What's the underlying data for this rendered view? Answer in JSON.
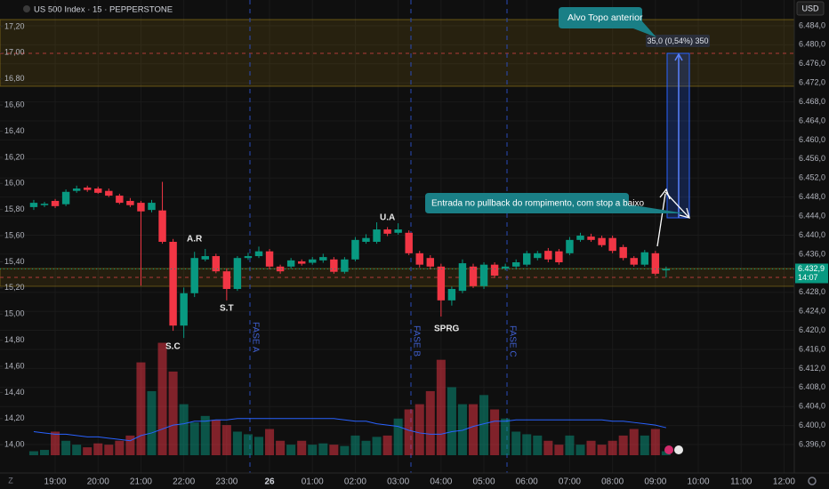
{
  "chart_data": {
    "type": "candlestick",
    "title": "US 500 Index · 15 · PEPPERSTONE",
    "currency": "USD",
    "x": [
      0,
      1,
      2,
      3,
      4,
      5,
      6,
      7,
      8,
      9,
      10,
      11,
      12,
      13,
      14,
      15,
      16,
      17,
      18,
      19,
      20,
      21,
      22,
      23,
      24,
      25,
      26,
      27,
      28,
      29,
      30,
      31,
      32,
      33,
      34,
      35,
      36,
      37,
      38,
      39,
      40,
      41,
      42,
      43,
      44,
      45,
      46,
      47,
      48,
      49,
      50,
      51,
      52,
      53,
      54,
      55,
      56,
      57,
      58,
      59
    ],
    "open": [
      6445.9,
      6446.3,
      6447.2,
      6446.5,
      6449.3,
      6450.0,
      6449.8,
      6449.3,
      6448.3,
      6447.2,
      6446.8,
      6445.3,
      6445.2,
      6438.6,
      6421.0,
      6427.8,
      6434.9,
      6435.6,
      6432.4,
      6428.7,
      6435.2,
      6435.6,
      6436.6,
      6433.4,
      6433.4,
      6434.5,
      6434.2,
      6434.7,
      6434.9,
      6432.3,
      6434.9,
      6438.6,
      6438.6,
      6441.2,
      6440.5,
      6440.5,
      6436.2,
      6435.2,
      6433.4,
      6426.3,
      6428.3,
      6433.4,
      6429.3,
      6433.8,
      6433.0,
      6433.4,
      6433.8,
      6435.2,
      6436.7,
      6436.6,
      6436.2,
      6439.0,
      6439.7,
      6439.4,
      6439.4,
      6437.5,
      6435.2,
      6433.8,
      6436.2,
      6432.6
    ],
    "high": [
      6447.4,
      6447.0,
      6447.6,
      6449.6,
      6450.4,
      6450.4,
      6450.2,
      6449.8,
      6448.7,
      6447.8,
      6447.2,
      6447.4,
      6451.2,
      6439.2,
      6429.0,
      6436.5,
      6437.1,
      6436.1,
      6433.0,
      6435.6,
      6436.3,
      6437.6,
      6437.1,
      6433.8,
      6435.2,
      6434.9,
      6435.4,
      6436.1,
      6435.4,
      6435.4,
      6439.6,
      6440.2,
      6442.7,
      6441.7,
      6442.5,
      6441.0,
      6436.7,
      6435.8,
      6434.0,
      6429.2,
      6434.9,
      6434.0,
      6434.3,
      6434.3,
      6434.0,
      6434.9,
      6436.7,
      6436.7,
      6437.3,
      6437.1,
      6439.6,
      6440.5,
      6440.3,
      6439.9,
      6439.9,
      6438.0,
      6435.6,
      6436.9,
      6436.7,
      6433.4
    ],
    "low": [
      6445.3,
      6445.9,
      6445.7,
      6446.1,
      6448.9,
      6449.1,
      6448.7,
      6448.0,
      6446.5,
      6445.9,
      6429.4,
      6444.8,
      6438.2,
      6419.9,
      6418.4,
      6427.0,
      6434.5,
      6432.0,
      6426.3,
      6428.3,
      6434.8,
      6435.2,
      6432.8,
      6431.9,
      6433.0,
      6433.6,
      6433.8,
      6434.2,
      6431.9,
      6431.9,
      6434.5,
      6438.2,
      6438.2,
      6439.8,
      6440.1,
      6435.8,
      6433.2,
      6432.8,
      6422.9,
      6425.2,
      6427.8,
      6428.9,
      6428.7,
      6431.0,
      6432.6,
      6432.8,
      6433.4,
      6434.7,
      6434.3,
      6433.8,
      6435.8,
      6438.6,
      6438.6,
      6437.5,
      6436.2,
      6434.7,
      6433.4,
      6433.4,
      6431.5,
      6431.1
    ],
    "close": [
      6446.8,
      6446.6,
      6446.1,
      6449.1,
      6449.8,
      6449.5,
      6448.9,
      6448.3,
      6446.8,
      6446.3,
      6445.0,
      6446.8,
      6438.6,
      6421.0,
      6427.8,
      6435.2,
      6435.6,
      6432.4,
      6428.7,
      6435.2,
      6435.6,
      6436.6,
      6433.4,
      6432.4,
      6434.7,
      6434.0,
      6434.9,
      6435.4,
      6432.3,
      6434.9,
      6439.0,
      6439.4,
      6441.2,
      6440.3,
      6441.2,
      6436.2,
      6433.8,
      6433.4,
      6426.3,
      6428.7,
      6434.1,
      6429.3,
      6433.8,
      6431.5,
      6433.4,
      6434.3,
      6436.2,
      6436.2,
      6434.9,
      6434.3,
      6439.0,
      6439.9,
      6439.0,
      6437.9,
      6436.7,
      6435.2,
      6433.8,
      6436.4,
      6431.9,
      6432.9
    ],
    "volume": [
      13.95,
      13.96,
      14.1,
      14.03,
      14.0,
      13.98,
      14.01,
      14.0,
      14.03,
      14.07,
      14.63,
      14.41,
      14.78,
      14.56,
      14.31,
      14.17,
      14.22,
      14.19,
      14.15,
      14.1,
      14.08,
      14.06,
      14.12,
      14.03,
      14.0,
      14.03,
      14.0,
      14.01,
      14.0,
      13.99,
      14.07,
      14.03,
      14.06,
      14.07,
      14.2,
      14.27,
      14.31,
      14.41,
      14.65,
      14.44,
      14.31,
      14.31,
      14.38,
      14.27,
      14.2,
      14.1,
      14.08,
      14.07,
      14.03,
      14.0,
      14.07,
      14.0,
      14.03,
      14.0,
      14.03,
      14.07,
      14.12,
      14.07,
      14.12,
      13.95
    ],
    "volume_ma": [
      14.1,
      14.09,
      14.08,
      14.08,
      14.07,
      14.06,
      14.06,
      14.05,
      14.04,
      14.03,
      14.07,
      14.09,
      14.12,
      14.15,
      14.16,
      14.18,
      14.18,
      14.19,
      14.19,
      14.2,
      14.2,
      14.2,
      14.2,
      14.2,
      14.2,
      14.2,
      14.2,
      14.2,
      14.2,
      14.19,
      14.18,
      14.18,
      14.16,
      14.15,
      14.14,
      14.11,
      14.09,
      14.08,
      14.08,
      14.1,
      14.11,
      14.14,
      14.16,
      14.18,
      14.18,
      14.19,
      14.19,
      14.19,
      14.19,
      14.19,
      14.19,
      14.19,
      14.19,
      14.19,
      14.18,
      14.18,
      14.17,
      14.16,
      14.15,
      14.13
    ],
    "volume_axis": "y2",
    "up_color": "#089981",
    "down_color": "#f23645",
    "ma_color": "#2962ff",
    "grid": true,
    "xlim": [
      -3.15,
      70.96
    ],
    "xticks": [
      {
        "value": 2,
        "label": "19:00"
      },
      {
        "value": 6,
        "label": "20:00"
      },
      {
        "value": 10,
        "label": "21:00"
      },
      {
        "value": 14,
        "label": "22:00"
      },
      {
        "value": 18,
        "label": "23:00"
      },
      {
        "value": 22,
        "label": "26"
      },
      {
        "value": 26,
        "label": "01:00"
      },
      {
        "value": 30,
        "label": "02:00"
      },
      {
        "value": 34,
        "label": "03:00"
      },
      {
        "value": 38,
        "label": "04:00"
      },
      {
        "value": 42,
        "label": "05:00"
      },
      {
        "value": 46,
        "label": "06:00"
      },
      {
        "value": 50,
        "label": "07:00"
      },
      {
        "value": 54,
        "label": "08:00"
      },
      {
        "value": 58,
        "label": "09:00"
      },
      {
        "value": 62,
        "label": "10:00"
      },
      {
        "value": 66,
        "label": "11:00"
      },
      {
        "value": 70,
        "label": "12:00"
      }
    ],
    "ylim": [
      6390.4,
      6485.3
    ],
    "yticks": [
      {
        "value": 6484,
        "label": "6.484,0"
      },
      {
        "value": 6480,
        "label": "6.480,0"
      },
      {
        "value": 6476,
        "label": "6.476,0"
      },
      {
        "value": 6472,
        "label": "6.472,0"
      },
      {
        "value": 6468,
        "label": "6.468,0"
      },
      {
        "value": 6464,
        "label": "6.464,0"
      },
      {
        "value": 6460,
        "label": "6.460,0"
      },
      {
        "value": 6456,
        "label": "6.456,0"
      },
      {
        "value": 6452,
        "label": "6.452,0"
      },
      {
        "value": 6448,
        "label": "6.448,0"
      },
      {
        "value": 6444,
        "label": "6.444,0"
      },
      {
        "value": 6440,
        "label": "6.440,0"
      },
      {
        "value": 6436,
        "label": "6.436,0"
      },
      {
        "value": 6428,
        "label": "6.428,0"
      },
      {
        "value": 6424,
        "label": "6.424,0"
      },
      {
        "value": 6420,
        "label": "6.420,0"
      },
      {
        "value": 6416,
        "label": "6.416,0"
      },
      {
        "value": 6412,
        "label": "6.412,0"
      },
      {
        "value": 6408,
        "label": "6.408,0"
      },
      {
        "value": 6404,
        "label": "6.404,0"
      },
      {
        "value": 6400,
        "label": "6.400,0"
      },
      {
        "value": 6396,
        "label": "6.396,0"
      }
    ],
    "y2lim": [
      13.797,
      17.254
    ],
    "y2ticks": [
      {
        "value": 17.2,
        "label": "17,20"
      },
      {
        "value": 17.0,
        "label": "17,00"
      },
      {
        "value": 16.8,
        "label": "16,80"
      },
      {
        "value": 16.6,
        "label": "16,60"
      },
      {
        "value": 16.4,
        "label": "16,40"
      },
      {
        "value": 16.2,
        "label": "16,20"
      },
      {
        "value": 16.0,
        "label": "16,00"
      },
      {
        "value": 15.8,
        "label": "15,80"
      },
      {
        "value": 15.6,
        "label": "15,60"
      },
      {
        "value": 15.4,
        "label": "15,40"
      },
      {
        "value": 15.2,
        "label": "15,20"
      },
      {
        "value": 15.0,
        "label": "15,00"
      },
      {
        "value": 14.8,
        "label": "14,80"
      },
      {
        "value": 14.6,
        "label": "14,60"
      },
      {
        "value": 14.4,
        "label": "14,40"
      },
      {
        "value": 14.2,
        "label": "14,20"
      },
      {
        "value": 14.0,
        "label": "14,00"
      }
    ],
    "last_price": {
      "value": 6432.9,
      "label": "6.432,9",
      "countdown": "14:07"
    },
    "phases": [
      "FASE A",
      "FASE B",
      "FASE C"
    ],
    "wyckoff_labels": [
      "S.C",
      "A.R",
      "S.T",
      "U.A",
      "SPRG"
    ],
    "callouts": [
      "Alvo Topo anterior",
      "Entrada no pullback do rompimento, com stop a baixo"
    ],
    "measure_label": "35,0 (0,54%) 350"
  }
}
